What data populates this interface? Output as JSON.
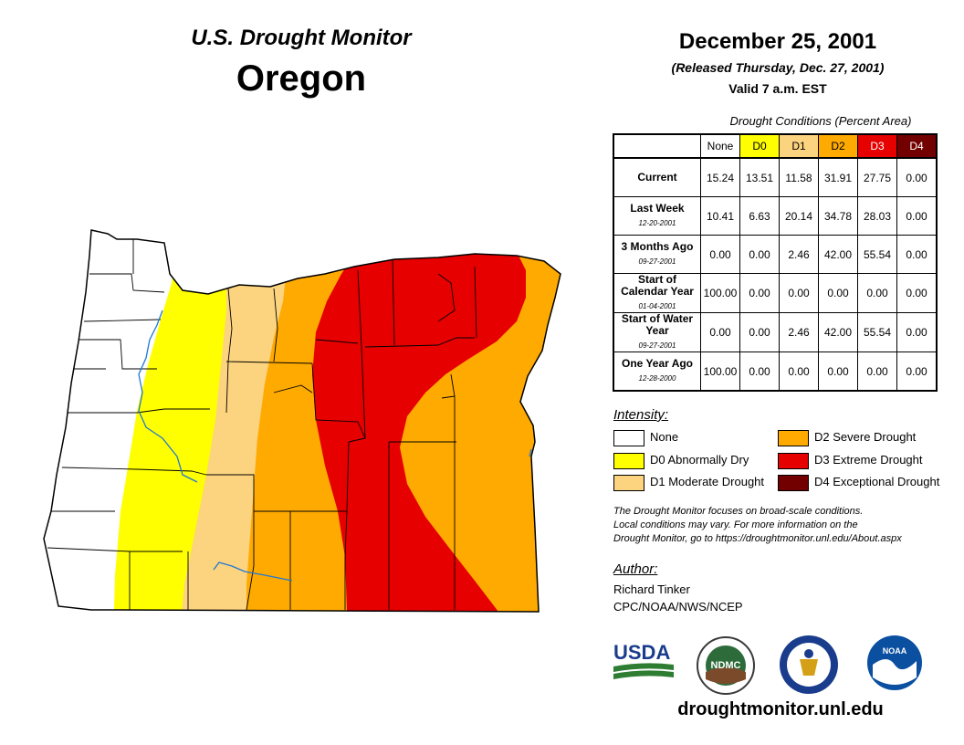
{
  "header": {
    "subtitle": "U.S. Drought Monitor",
    "state": "Oregon",
    "date": "December 25, 2001",
    "released": "(Released Thursday, Dec. 27, 2001)",
    "valid": "Valid 7 a.m. EST"
  },
  "table": {
    "caption": "Drought Conditions (Percent Area)",
    "columns": [
      "None",
      "D0",
      "D1",
      "D2",
      "D3",
      "D4"
    ],
    "column_colors": [
      "#ffffff",
      "#ffff00",
      "#fcd37f",
      "#ffaa00",
      "#e60000",
      "#730000"
    ],
    "rows": [
      {
        "label": "Current",
        "date": "",
        "values": [
          "15.24",
          "13.51",
          "11.58",
          "31.91",
          "27.75",
          "0.00"
        ]
      },
      {
        "label": "Last Week",
        "date": "12-20-2001",
        "values": [
          "10.41",
          "6.63",
          "20.14",
          "34.78",
          "28.03",
          "0.00"
        ]
      },
      {
        "label": "3 Months Ago",
        "date": "09-27-2001",
        "values": [
          "0.00",
          "0.00",
          "2.46",
          "42.00",
          "55.54",
          "0.00"
        ]
      },
      {
        "label": "Start of Calendar Year",
        "date": "01-04-2001",
        "values": [
          "100.00",
          "0.00",
          "0.00",
          "0.00",
          "0.00",
          "0.00"
        ]
      },
      {
        "label": "Start of Water Year",
        "date": "09-27-2001",
        "values": [
          "0.00",
          "0.00",
          "2.46",
          "42.00",
          "55.54",
          "0.00"
        ]
      },
      {
        "label": "One Year Ago",
        "date": "12-28-2000",
        "values": [
          "100.00",
          "0.00",
          "0.00",
          "0.00",
          "0.00",
          "0.00"
        ]
      }
    ]
  },
  "legend": {
    "title": "Intensity:",
    "items": [
      {
        "label": "None",
        "color": "#ffffff"
      },
      {
        "label": "D0 Abnormally Dry",
        "color": "#ffff00"
      },
      {
        "label": "D1 Moderate Drought",
        "color": "#fcd37f"
      },
      {
        "label": "D2 Severe Drought",
        "color": "#ffaa00"
      },
      {
        "label": "D3 Extreme Drought",
        "color": "#e60000"
      },
      {
        "label": "D4 Exceptional Drought",
        "color": "#730000"
      }
    ]
  },
  "note": {
    "line1": "The Drought Monitor focuses on broad-scale conditions.",
    "line2": "Local conditions may vary. For more information on the",
    "line3": "Drought Monitor, go to https://droughtmonitor.unl.edu/About.aspx"
  },
  "author": {
    "heading": "Author:",
    "name": "Richard Tinker",
    "org": "CPC/NOAA/NWS/NCEP"
  },
  "logos": {
    "usda": "USDA",
    "ndmc": "NDMC",
    "noaa": "NOAA"
  },
  "footer_url": "droughtmonitor.unl.edu"
}
